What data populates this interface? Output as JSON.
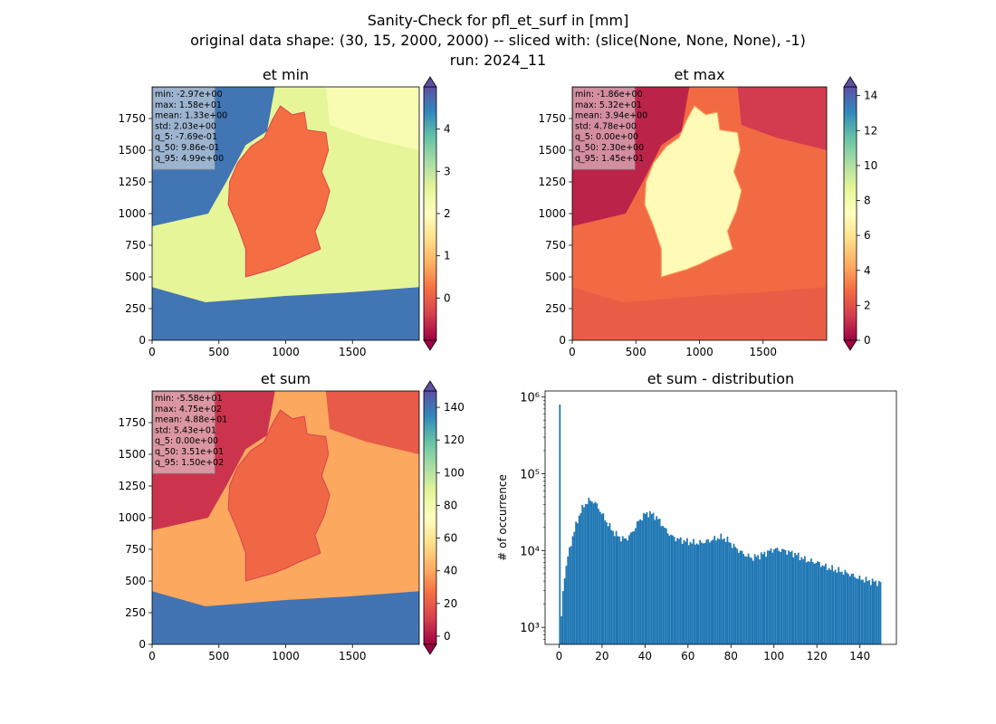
{
  "figure": {
    "title_lines": [
      "Sanity-Check for pfl_et_surf in [mm]",
      "original data shape: (30, 15, 2000, 2000) -- sliced with: (slice(None, None, None), -1)",
      "run: 2024_11"
    ]
  },
  "chart_data": [
    {
      "type": "heatmap",
      "title": "et min",
      "colormap": "Spectral",
      "xlim": [
        0,
        2000
      ],
      "ylim": [
        0,
        2000
      ],
      "xticks": [
        0,
        500,
        1000,
        1500
      ],
      "yticks": [
        0,
        250,
        500,
        750,
        1000,
        1250,
        1500,
        1750
      ],
      "colorbar": {
        "min": -1,
        "max": 5,
        "ticks": [
          0,
          1,
          2,
          3,
          4
        ],
        "extend": "both"
      },
      "stats": [
        "min: -2.97e+00",
        "max: 1.58e+01",
        "mean: 1.33e+00",
        "std: 2.03e+00",
        "q_5: -7.69e-01",
        "q_50: 9.86e-01",
        "q_95: 4.99e+00"
      ],
      "regions": {
        "background": 2.6,
        "north_sea": 4.6,
        "south": 4.6,
        "baltic": 2.2,
        "germany": 0.2
      }
    },
    {
      "type": "heatmap",
      "title": "et max",
      "colormap": "Spectral",
      "xlim": [
        0,
        2000
      ],
      "ylim": [
        0,
        2000
      ],
      "xticks": [
        0,
        500,
        1000,
        1500
      ],
      "yticks": [
        0,
        250,
        500,
        750,
        1000,
        1250,
        1500,
        1750
      ],
      "colorbar": {
        "min": 0,
        "max": 14.5,
        "ticks": [
          0,
          2,
          4,
          6,
          8,
          10,
          12,
          14
        ],
        "extend": "both"
      },
      "stats": [
        "min: -1.86e+00",
        "max: 5.32e+01",
        "mean: 3.94e+00",
        "std: 4.78e+00",
        "q_5: 0.00e+00",
        "q_50: 2.30e+00",
        "q_95: 1.45e+01"
      ],
      "regions": {
        "background": 2.8,
        "north_sea": 0.8,
        "south": 2.4,
        "baltic": 1.4,
        "germany": 7.0
      }
    },
    {
      "type": "heatmap",
      "title": "et sum",
      "colormap": "Spectral",
      "xlim": [
        0,
        2000
      ],
      "ylim": [
        0,
        2000
      ],
      "xticks": [
        0,
        500,
        1000,
        1500
      ],
      "yticks": [
        0,
        250,
        500,
        750,
        1000,
        1250,
        1500,
        1750
      ],
      "colorbar": {
        "min": -5,
        "max": 150,
        "ticks": [
          0,
          20,
          40,
          60,
          80,
          100,
          120,
          140
        ],
        "extend": "both"
      },
      "stats": [
        "min: -5.58e+01",
        "max: 4.75e+02",
        "mean: 4.88e+01",
        "std: 5.43e+01",
        "q_5: 0.00e+00",
        "q_50: 3.51e+01",
        "q_95: 1.50e+02"
      ],
      "regions": {
        "background": 40,
        "north_sea": 8,
        "south": 140,
        "baltic": 20,
        "germany": 24
      }
    },
    {
      "type": "bar",
      "title": "et sum - distribution",
      "ylabel": "# of occurrence",
      "yscale": "log",
      "xlim": [
        -6.5,
        157
      ],
      "ylim": [
        600,
        1200000
      ],
      "xticks": [
        0,
        20,
        40,
        60,
        80,
        100,
        120,
        140
      ],
      "yticks": [
        1000,
        10000,
        100000,
        1000000
      ],
      "ytick_labels": [
        "10³",
        "10⁴",
        "10⁵",
        "10⁶"
      ],
      "color": "#1f77b4",
      "bin_range": [
        0,
        150
      ],
      "bin_count": 200,
      "curve_knots": [
        [
          0,
          800000
        ],
        [
          0.75,
          800
        ],
        [
          1.5,
          2200
        ],
        [
          2.5,
          4500
        ],
        [
          4,
          8000
        ],
        [
          6,
          14000
        ],
        [
          8,
          22000
        ],
        [
          10,
          32000
        ],
        [
          12,
          40000
        ],
        [
          14,
          45000
        ],
        [
          16,
          44000
        ],
        [
          18,
          38000
        ],
        [
          20,
          30000
        ],
        [
          22,
          24000
        ],
        [
          25,
          18000
        ],
        [
          28,
          15000
        ],
        [
          31,
          14000
        ],
        [
          34,
          17000
        ],
        [
          37,
          24000
        ],
        [
          40,
          30000
        ],
        [
          42,
          31000
        ],
        [
          45,
          28000
        ],
        [
          48,
          22000
        ],
        [
          50,
          18000
        ],
        [
          53,
          15000
        ],
        [
          56,
          14000
        ],
        [
          60,
          13000
        ],
        [
          65,
          12500
        ],
        [
          70,
          13500
        ],
        [
          75,
          15000
        ],
        [
          78,
          14000
        ],
        [
          82,
          11000
        ],
        [
          86,
          9000
        ],
        [
          90,
          8000
        ],
        [
          95,
          9000
        ],
        [
          100,
          10500
        ],
        [
          105,
          10000
        ],
        [
          110,
          9000
        ],
        [
          115,
          7500
        ],
        [
          120,
          7000
        ],
        [
          125,
          6000
        ],
        [
          130,
          5500
        ],
        [
          135,
          5000
        ],
        [
          140,
          4300
        ],
        [
          145,
          4000
        ],
        [
          150,
          3800
        ]
      ]
    }
  ]
}
